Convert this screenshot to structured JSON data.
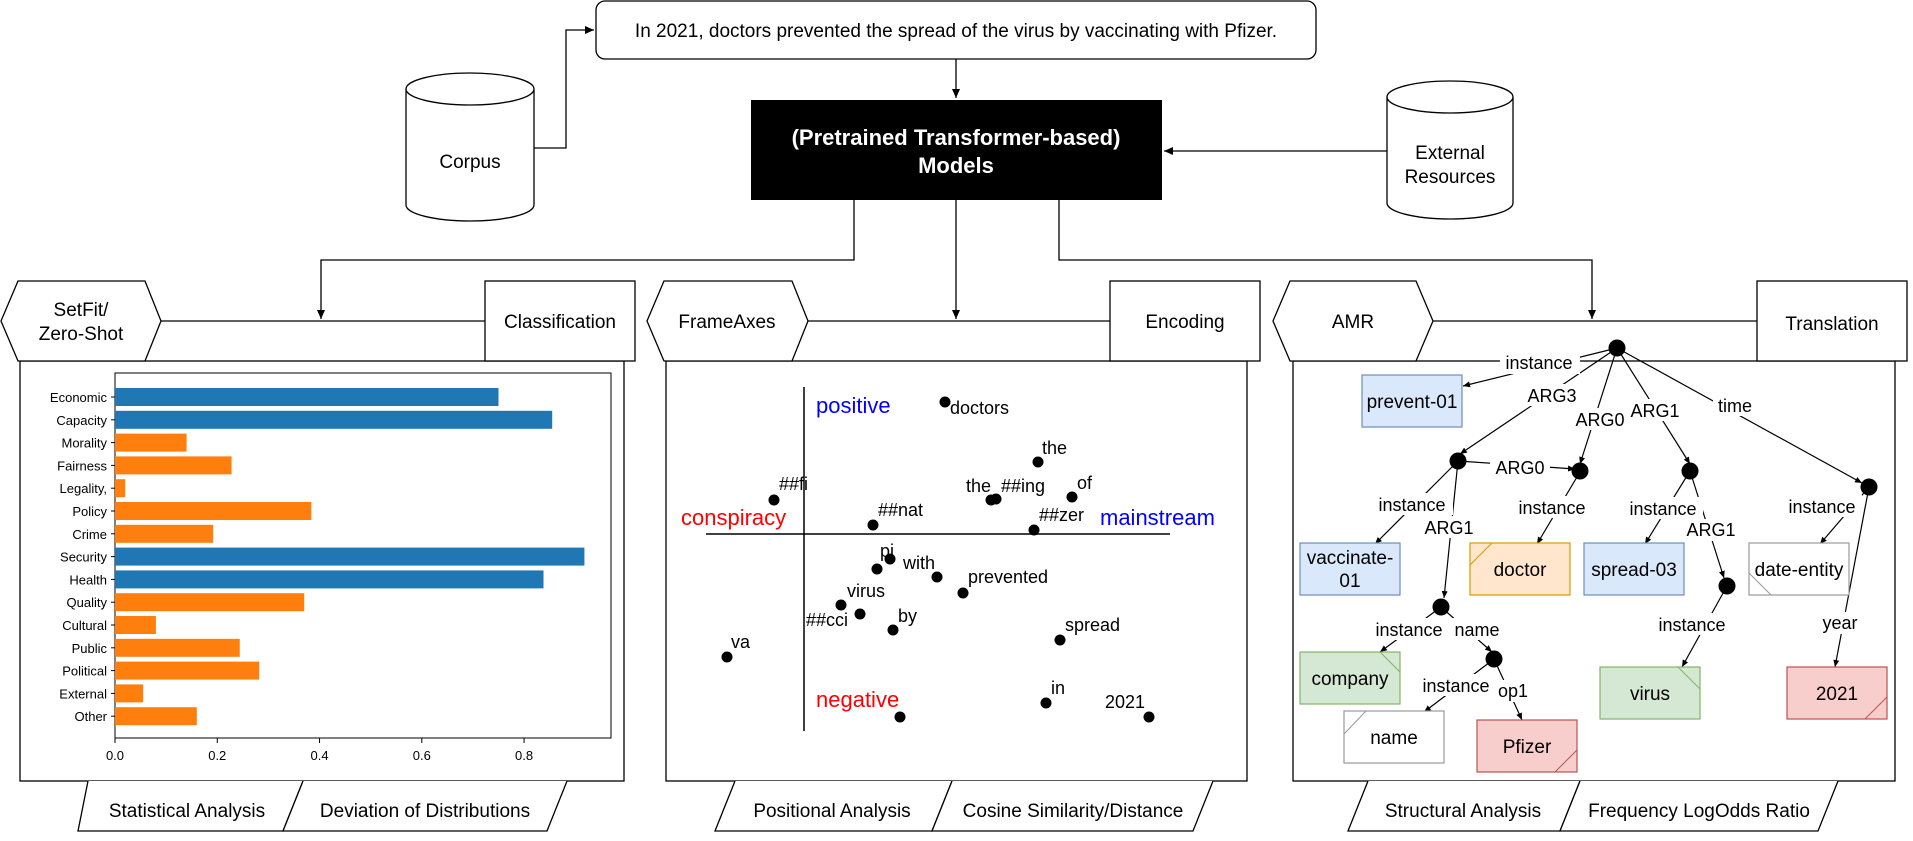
{
  "input_sentence": "In 2021, doctors prevented the spread of the virus by vaccinating with Pfizer.",
  "corpus_label": "Corpus",
  "model_label_line1": "(Pretrained Transformer-based)",
  "model_label_line2": "Models",
  "external_label_line1": "External",
  "external_label_line2": "Resources",
  "left_panel": {
    "method_line1": "SetFit/",
    "method_line2": "Zero-Shot",
    "task": "Classification",
    "analysis_left": "Statistical Analysis",
    "analysis_right": "Deviation of Distributions"
  },
  "middle_panel": {
    "method": "FrameAxes",
    "task": "Encoding",
    "analysis_left": "Positional Analysis",
    "analysis_right": "Cosine Similarity/Distance",
    "pole_top": "positive",
    "pole_bottom": "negative",
    "pole_left": "conspiracy",
    "pole_right": "mainstream",
    "pole_color_blue": "#0000ff",
    "pole_color_red": "#ff0000",
    "words": [
      {
        "id": "doctors",
        "text": "doctors"
      },
      {
        "id": "the1",
        "text": "the"
      },
      {
        "id": "the2",
        "text": "the"
      },
      {
        "id": "ing",
        "text": "##ing"
      },
      {
        "id": "of",
        "text": "of"
      },
      {
        "id": "fi",
        "text": "##fi"
      },
      {
        "id": "nat",
        "text": "##nat"
      },
      {
        "id": "zer",
        "text": "##zer"
      },
      {
        "id": "pi",
        "text": "pi"
      },
      {
        "id": "with",
        "text": "with"
      },
      {
        "id": "prevented",
        "text": "prevented"
      },
      {
        "id": "virus",
        "text": "virus"
      },
      {
        "id": "cci",
        "text": "##cci"
      },
      {
        "id": "by",
        "text": "by"
      },
      {
        "id": "va",
        "text": "va"
      },
      {
        "id": "spread",
        "text": "spread"
      },
      {
        "id": "in",
        "text": "in"
      },
      {
        "id": "y2021",
        "text": "2021"
      }
    ]
  },
  "right_panel": {
    "method": "AMR",
    "task": "Translation",
    "analysis_left": "Structural Analysis",
    "analysis_right": "Frequency LogOdds Ratio",
    "nodes": {
      "prevent": "prevent-01",
      "vaccinate_l1": "vaccinate-",
      "vaccinate_l2": "01",
      "doctor": "doctor",
      "spread": "spread-03",
      "date_entity": "date-entity",
      "company": "company",
      "virus": "virus",
      "name": "name",
      "pfizer": "Pfizer",
      "y2021": "2021"
    },
    "edges": {
      "instance": "instance",
      "arg0": "ARG0",
      "arg1": "ARG1",
      "arg3": "ARG3",
      "time": "time",
      "name": "name",
      "op1": "op1",
      "year": "year"
    },
    "colors": {
      "blue_fill": "#dae8fc",
      "blue_stroke": "#6c8ebf",
      "orange_fill": "#ffe6cc",
      "orange_stroke": "#d79b00",
      "green_fill": "#d5e8d4",
      "green_stroke": "#82b366",
      "red_fill": "#f8cecc",
      "red_stroke": "#b85450",
      "white_fill": "#ffffff",
      "white_stroke": "#999999"
    }
  },
  "chart_data": {
    "type": "bar",
    "orientation": "horizontal",
    "categories": [
      "Economic",
      "Capacity",
      "Morality",
      "Fairness",
      "Legality,",
      "Policy",
      "Crime",
      "Security",
      "Health",
      "Quality",
      "Cultural",
      "Public",
      "Political",
      "External",
      "Other"
    ],
    "values": [
      0.75,
      0.855,
      0.14,
      0.228,
      0.02,
      0.384,
      0.192,
      0.918,
      0.838,
      0.37,
      0.08,
      0.244,
      0.282,
      0.055,
      0.16
    ],
    "bar_colors": [
      "#1f77b4",
      "#1f77b4",
      "#ff7f0e",
      "#ff7f0e",
      "#ff7f0e",
      "#ff7f0e",
      "#ff7f0e",
      "#1f77b4",
      "#1f77b4",
      "#ff7f0e",
      "#ff7f0e",
      "#ff7f0e",
      "#ff7f0e",
      "#ff7f0e",
      "#ff7f0e"
    ],
    "xlim": [
      0,
      0.97
    ],
    "xticks": [
      "0.0",
      "0.2",
      "0.4",
      "0.6",
      "0.8"
    ],
    "xtick_values": [
      0,
      0.2,
      0.4,
      0.6,
      0.8
    ],
    "grid": false
  }
}
